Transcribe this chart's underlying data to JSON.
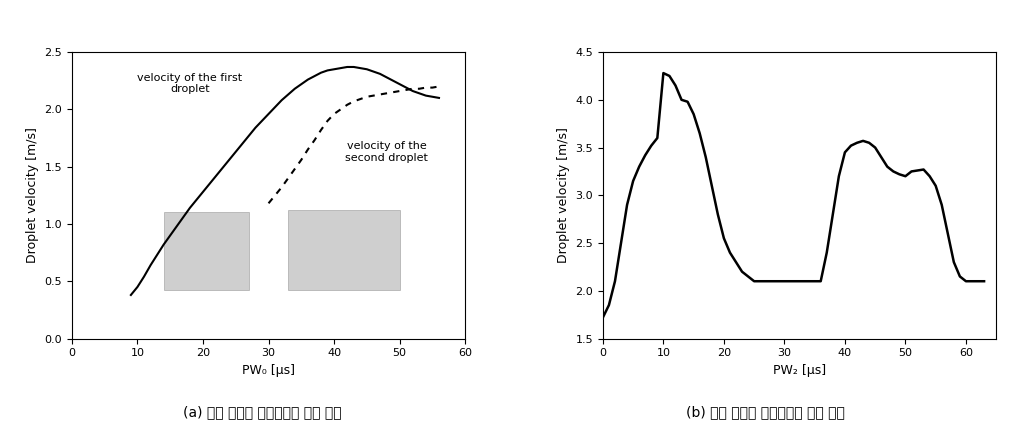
{
  "chart_a": {
    "title": "",
    "xlabel": "PW₀ [μs]",
    "ylabel": "Droplet velocity [m/s]",
    "xlim": [
      0,
      60
    ],
    "ylim": [
      0,
      2.5
    ],
    "yticks": [
      0,
      0.5,
      1.0,
      1.5,
      2.0,
      2.5
    ],
    "xticks": [
      0,
      10,
      20,
      30,
      40,
      50,
      60
    ],
    "label_first": "velocity of the first\ndroplet",
    "label_second": "velocity of the\nsecond droplet",
    "first_droplet_x": [
      9,
      10,
      11,
      12,
      13,
      14,
      15,
      16,
      17,
      18,
      19,
      20,
      21,
      22,
      23,
      24,
      25,
      26,
      27,
      28,
      29,
      30,
      31,
      32,
      33,
      34,
      35,
      36,
      37,
      38,
      39,
      40,
      41,
      42,
      43,
      44,
      45,
      46,
      47,
      48,
      49,
      50,
      51,
      52,
      53,
      54,
      55,
      56
    ],
    "first_droplet_y": [
      0.38,
      0.45,
      0.54,
      0.64,
      0.73,
      0.82,
      0.9,
      0.98,
      1.06,
      1.14,
      1.21,
      1.28,
      1.35,
      1.42,
      1.49,
      1.56,
      1.63,
      1.7,
      1.77,
      1.84,
      1.9,
      1.96,
      2.02,
      2.08,
      2.13,
      2.18,
      2.22,
      2.26,
      2.29,
      2.32,
      2.34,
      2.35,
      2.36,
      2.37,
      2.37,
      2.36,
      2.35,
      2.33,
      2.31,
      2.28,
      2.25,
      2.22,
      2.19,
      2.16,
      2.14,
      2.12,
      2.11,
      2.1
    ],
    "second_droplet_x": [
      30,
      31,
      32,
      33,
      34,
      35,
      36,
      37,
      38,
      39,
      40,
      41,
      42,
      43,
      44,
      45,
      46,
      47,
      48,
      49,
      50,
      51,
      52,
      53,
      54,
      55,
      56
    ],
    "second_droplet_y": [
      1.18,
      1.25,
      1.32,
      1.4,
      1.48,
      1.56,
      1.65,
      1.73,
      1.82,
      1.9,
      1.96,
      2.0,
      2.04,
      2.07,
      2.09,
      2.11,
      2.12,
      2.13,
      2.14,
      2.15,
      2.16,
      2.17,
      2.18,
      2.18,
      2.19,
      2.19,
      2.2
    ],
    "caption": "(a) 단일 피에조 노즐에서의 토출 결과"
  },
  "chart_b": {
    "title": "",
    "xlabel": "PW₂ [μs]",
    "ylabel": "Droplet velocity [m/s]",
    "xlim": [
      0,
      65
    ],
    "ylim": [
      1.5,
      4.5
    ],
    "yticks": [
      1.5,
      2.0,
      2.5,
      3.0,
      3.5,
      4.0,
      4.5
    ],
    "xticks": [
      0,
      10,
      20,
      30,
      40,
      50,
      60
    ],
    "x": [
      0,
      1,
      2,
      3,
      4,
      5,
      6,
      7,
      8,
      9,
      10,
      11,
      12,
      13,
      14,
      15,
      16,
      17,
      18,
      19,
      20,
      21,
      22,
      23,
      24,
      25,
      26,
      27,
      28,
      29,
      30,
      31,
      32,
      33,
      34,
      35,
      36,
      37,
      38,
      39,
      40,
      41,
      42,
      43,
      44,
      45,
      46,
      47,
      48,
      49,
      50,
      51,
      52,
      53,
      54,
      55,
      56,
      57,
      58,
      59,
      60,
      61,
      62,
      63
    ],
    "y": [
      1.72,
      1.85,
      2.1,
      2.5,
      2.9,
      3.15,
      3.3,
      3.42,
      3.52,
      3.6,
      4.28,
      4.25,
      4.15,
      4.0,
      3.98,
      3.85,
      3.65,
      3.4,
      3.1,
      2.8,
      2.55,
      2.4,
      2.3,
      2.2,
      2.15,
      2.1,
      2.1,
      2.1,
      2.1,
      2.1,
      2.1,
      2.1,
      2.1,
      2.1,
      2.1,
      2.1,
      2.1,
      2.4,
      2.8,
      3.2,
      3.45,
      3.52,
      3.55,
      3.57,
      3.55,
      3.5,
      3.4,
      3.3,
      3.25,
      3.22,
      3.2,
      3.25,
      3.26,
      3.27,
      3.2,
      3.1,
      2.9,
      2.6,
      2.3,
      2.15,
      2.1,
      2.1,
      2.1,
      2.1
    ],
    "caption": "(b) 이중 피에조 노즐에서의 토출 결과"
  }
}
